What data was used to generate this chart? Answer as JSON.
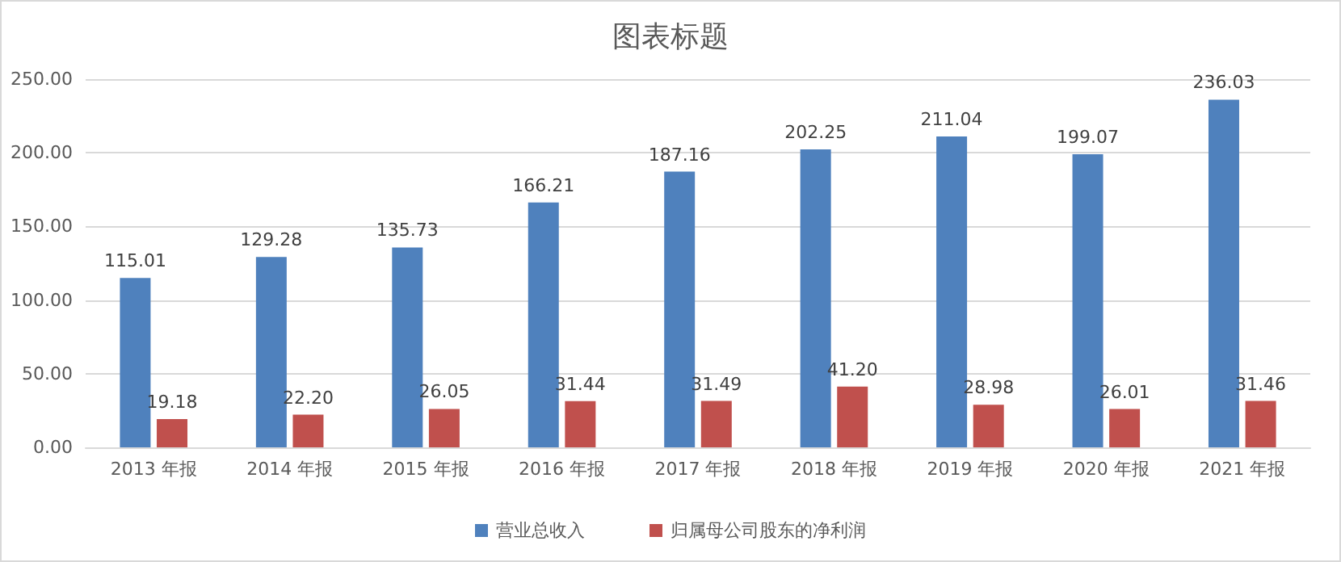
{
  "chart_data": {
    "type": "bar",
    "title": "图表标题",
    "categories": [
      "2013 年报",
      "2014 年报",
      "2015 年报",
      "2016 年报",
      "2017 年报",
      "2018 年报",
      "2019 年报",
      "2020 年报",
      "2021 年报"
    ],
    "series": [
      {
        "name": "营业总收入",
        "color": "#4f81bd",
        "values": [
          115.01,
          129.28,
          135.73,
          166.21,
          187.16,
          202.25,
          211.04,
          199.07,
          236.03
        ],
        "value_labels": [
          "115.01",
          "129.28",
          "135.73",
          "166.21",
          "187.16",
          "202.25",
          "211.04",
          "199.07",
          "236.03"
        ]
      },
      {
        "name": "归属母公司股东的净利润",
        "color": "#c0504d",
        "values": [
          19.18,
          22.2,
          26.05,
          31.44,
          31.49,
          41.2,
          28.98,
          26.01,
          31.46
        ],
        "value_labels": [
          "19.18",
          "22.20",
          "26.05",
          "31.44",
          "31.49",
          "41.20",
          "28.98",
          "26.01",
          "31.46"
        ]
      }
    ],
    "ylim": [
      0,
      250
    ],
    "yticks": [
      {
        "value": 0,
        "label": "0.00"
      },
      {
        "value": 50,
        "label": "50.00"
      },
      {
        "value": 100,
        "label": "100.00"
      },
      {
        "value": 150,
        "label": "150.00"
      },
      {
        "value": 200,
        "label": "200.00"
      },
      {
        "value": 250,
        "label": "250.00"
      }
    ],
    "grid": "y",
    "legend": "bottom"
  }
}
